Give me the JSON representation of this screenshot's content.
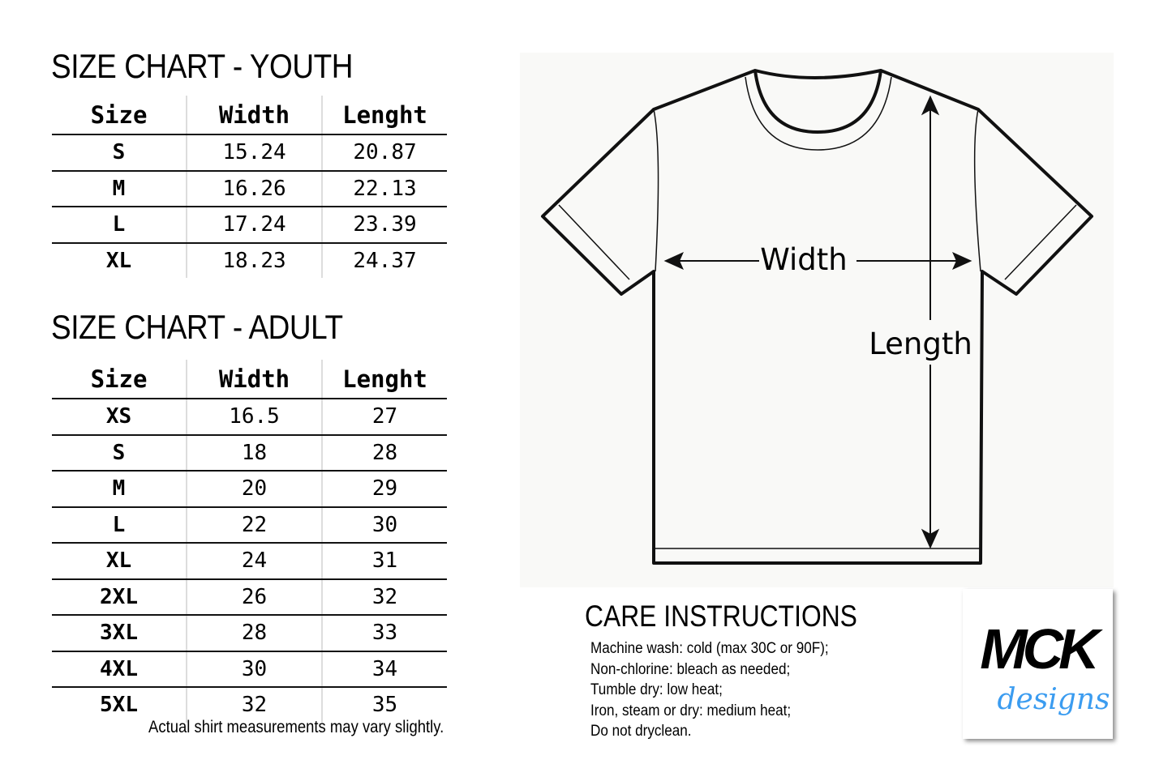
{
  "youth": {
    "title": "SIZE CHART - YOUTH",
    "headers": [
      "Size",
      "Width",
      "Lenght"
    ],
    "rows": [
      [
        "S",
        "15.24",
        "20.87"
      ],
      [
        "M",
        "16.26",
        "22.13"
      ],
      [
        "L",
        "17.24",
        "23.39"
      ],
      [
        "XL",
        "18.23",
        "24.37"
      ]
    ]
  },
  "adult": {
    "title": "SIZE CHART - ADULT",
    "headers": [
      "Size",
      "Width",
      "Lenght"
    ],
    "rows": [
      [
        "XS",
        "16.5",
        "27"
      ],
      [
        "S",
        "18",
        "28"
      ],
      [
        "M",
        "20",
        "29"
      ],
      [
        "L",
        "22",
        "30"
      ],
      [
        "XL",
        "24",
        "31"
      ],
      [
        "2XL",
        "26",
        "32"
      ],
      [
        "3XL",
        "28",
        "33"
      ],
      [
        "4XL",
        "30",
        "34"
      ],
      [
        "5XL",
        "32",
        "35"
      ]
    ]
  },
  "note": "Actual shirt measurements may vary slightly.",
  "diagram": {
    "width_label": "Width",
    "length_label": "Length"
  },
  "care": {
    "title": "CARE INSTRUCTIONS",
    "lines": [
      "Machine wash: cold (max 30C or 90F);",
      "Non-chlorine: bleach as needed;",
      "Tumble dry: low heat;",
      "Iron, steam or dry: medium heat;",
      "Do not dryclean."
    ]
  },
  "logo": {
    "main": "MCK",
    "script": "designs",
    "accent_color": "#3b9cf0"
  }
}
